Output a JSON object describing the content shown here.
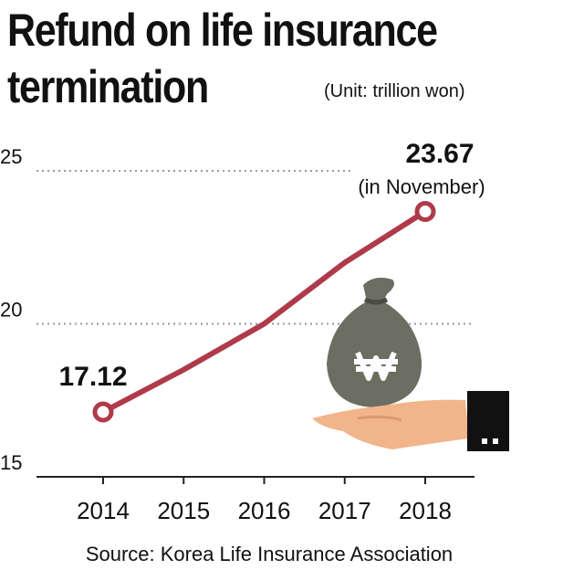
{
  "chart_data": {
    "type": "line",
    "title": "Refund on life insurance termination",
    "unit": "(Unit: trillion won)",
    "annotation": "(in November)",
    "source": "Source: Korea Life Insurance Association",
    "categories": [
      "2014",
      "2015",
      "2016",
      "2017",
      "2018"
    ],
    "series": [
      {
        "name": "Refund",
        "color": "#b03a4a",
        "values": [
          17.12,
          18.5,
          20.0,
          22.0,
          23.67
        ]
      }
    ],
    "ylim": [
      15,
      25
    ],
    "yticks": [
      15,
      20,
      25
    ],
    "grid": true
  }
}
